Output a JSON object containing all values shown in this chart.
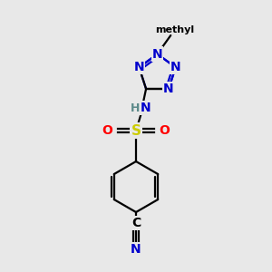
{
  "background_color": "#e8e8e8",
  "atom_colors": {
    "N": "#0000cc",
    "O": "#ff0000",
    "S": "#cccc00",
    "C": "#000000",
    "H": "#5c8a8a",
    "bond": "#000000"
  },
  "figsize": [
    3.0,
    3.0
  ],
  "dpi": 100
}
